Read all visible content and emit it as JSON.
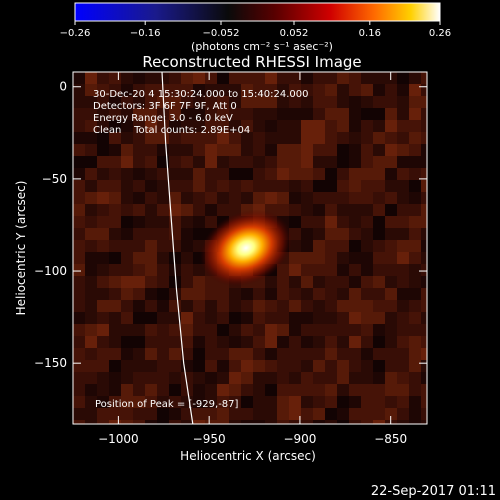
{
  "chart_data": {
    "type": "heatmap",
    "title": "Reconstructed RHESSI Image",
    "xlabel": "Heliocentric X (arcsec)",
    "ylabel": "Heliocentric Y (arcsec)",
    "xlim": [
      -1025,
      -830
    ],
    "ylim": [
      -183,
      8
    ],
    "xticks": [
      -1000,
      -950,
      -900,
      -850
    ],
    "yticks": [
      0,
      -50,
      -100,
      -150
    ],
    "xtick_labels": [
      "−1000",
      "−950",
      "−900",
      "−850"
    ],
    "ytick_labels": [
      "0",
      "−50",
      "−100",
      "−150"
    ],
    "colorbar": {
      "range": [
        -0.26,
        0.26
      ],
      "ticks": [
        -0.26,
        -0.16,
        -0.052,
        0.052,
        0.16,
        0.26
      ],
      "tick_labels": [
        "−0.26",
        "−0.16",
        "−0.052",
        "0.052",
        "0.16",
        "0.26"
      ],
      "unit_label": "(photons cm⁻² s⁻¹ asec⁻²)",
      "colormap": "blue-black-red-yellow-white"
    },
    "annotations": [
      "30-Dec-20 4 15:30:24.000 to 15:40:24.000",
      "Detectors: 3F 6F 7F 9F, Att 0",
      "Energy Range: 3.0 - 6.0 keV",
      "Clean    Total counts: 2.89E+04"
    ],
    "peak_label": "Position of Peak = [-929,-87]",
    "peak": {
      "x": -929,
      "y": -87
    },
    "limb_curve": [
      {
        "x": -976,
        "y": 8
      },
      {
        "x": -974,
        "y": -30
      },
      {
        "x": -971,
        "y": -70
      },
      {
        "x": -968,
        "y": -110
      },
      {
        "x": -964,
        "y": -150
      },
      {
        "x": -959,
        "y": -183
      }
    ],
    "grid": false
  },
  "footer": {
    "date": "22-Sep-2017 01:11"
  },
  "colors": {
    "background": "#000000",
    "text": "#ffffff",
    "limb": "#ffffff"
  }
}
